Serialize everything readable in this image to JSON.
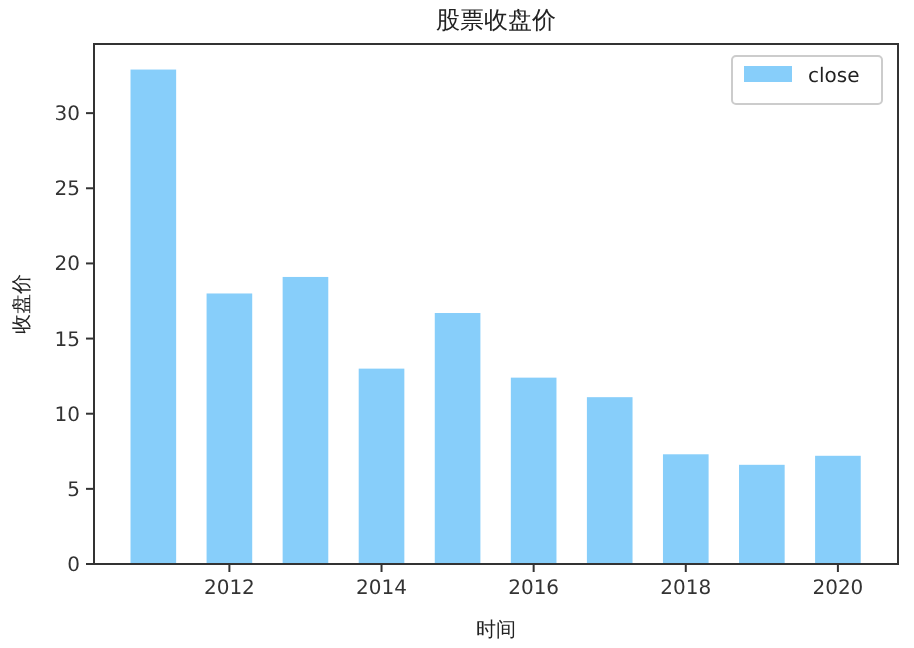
{
  "chart_data": {
    "type": "bar",
    "title": "股票收盘价",
    "xlabel": "时间",
    "ylabel": "收盘价",
    "x": [
      2011,
      2012,
      2013,
      2014,
      2015,
      2016,
      2017,
      2018,
      2019,
      2020
    ],
    "series": [
      {
        "name": "close",
        "color": "#87cefa",
        "values": [
          32.9,
          18.0,
          19.1,
          13.0,
          16.7,
          12.4,
          11.1,
          7.3,
          6.6,
          7.2
        ]
      }
    ],
    "xlim": [
      2010.22,
      2020.79
    ],
    "xticks": [
      2012,
      2014,
      2016,
      2018,
      2020
    ],
    "ylim": [
      0,
      34.6
    ],
    "yticks": [
      0,
      5,
      10,
      15,
      20,
      25,
      30
    ],
    "legend": "top right"
  }
}
